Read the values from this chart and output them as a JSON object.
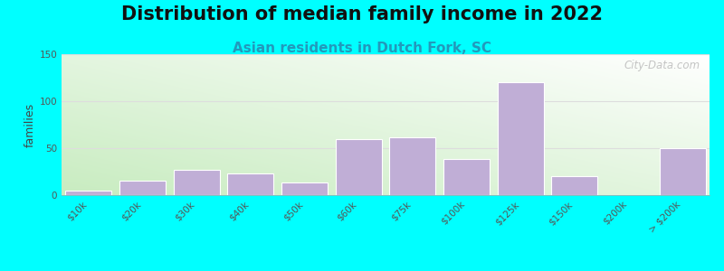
{
  "title": "Distribution of median family income in 2022",
  "subtitle": "Asian residents in Dutch Fork, SC",
  "ylabel": "families",
  "background_outer": "#00FFFF",
  "bar_color": "#C0AED6",
  "categories": [
    "$10k",
    "$20k",
    "$30k",
    "$40k",
    "$50k",
    "$60k",
    "$75k",
    "$100k",
    "$125k",
    "$150k",
    "$200k",
    "> $200k"
  ],
  "values": [
    5,
    15,
    27,
    23,
    13,
    60,
    62,
    38,
    120,
    20,
    0,
    50
  ],
  "ylim": [
    0,
    150
  ],
  "yticks": [
    0,
    50,
    100,
    150
  ],
  "watermark": "City-Data.com",
  "title_fontsize": 15,
  "subtitle_fontsize": 11,
  "ylabel_fontsize": 9,
  "tick_fontsize": 7.5
}
